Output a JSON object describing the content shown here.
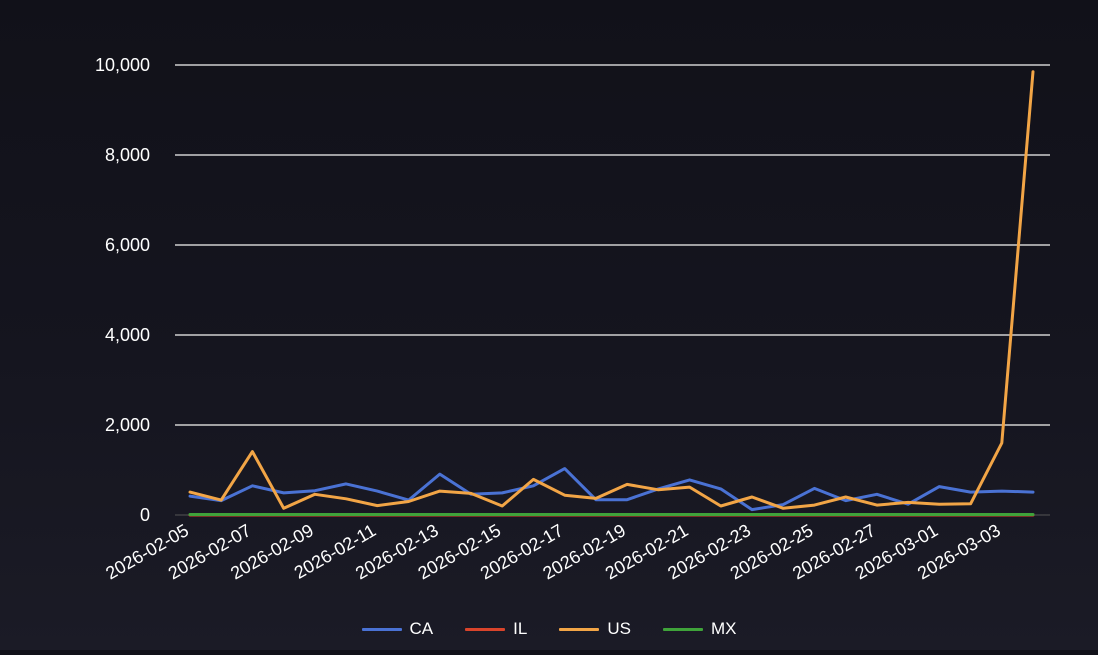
{
  "chart_data": {
    "type": "line",
    "x": [
      "2026-02-05",
      "2026-02-06",
      "2026-02-07",
      "2026-02-08",
      "2026-02-09",
      "2026-02-10",
      "2026-02-11",
      "2026-02-12",
      "2026-02-13",
      "2026-02-14",
      "2026-02-15",
      "2026-02-16",
      "2026-02-17",
      "2026-02-18",
      "2026-02-19",
      "2026-02-20",
      "2026-02-21",
      "2026-02-22",
      "2026-02-23",
      "2026-02-24",
      "2026-02-25",
      "2026-02-26",
      "2026-02-27",
      "2026-02-28",
      "2026-03-01",
      "2026-03-02",
      "2026-03-03",
      "2026-03-04"
    ],
    "x_tick_labels": [
      "2026-02-05",
      "2026-02-07",
      "2026-02-09",
      "2026-02-11",
      "2026-02-13",
      "2026-02-15",
      "2026-02-17",
      "2026-02-19",
      "2026-02-21",
      "2026-02-23",
      "2026-02-25",
      "2026-02-27",
      "2026-03-01",
      "2026-03-03"
    ],
    "y_tick_labels": [
      "0",
      "2,000",
      "4,000",
      "6,000",
      "8,000",
      "10,000"
    ],
    "ylim": [
      0,
      10000
    ],
    "grid": true,
    "legend_position": "bottom",
    "series": [
      {
        "name": "CA",
        "color": "#4a72d4",
        "values": [
          420,
          320,
          650,
          490,
          540,
          690,
          530,
          330,
          910,
          460,
          490,
          650,
          1030,
          340,
          340,
          580,
          780,
          580,
          120,
          230,
          590,
          320,
          460,
          240,
          630,
          510,
          530,
          510
        ]
      },
      {
        "name": "IL",
        "color": "#d9442b",
        "values": [
          0,
          0,
          0,
          0,
          0,
          0,
          0,
          0,
          0,
          0,
          0,
          0,
          0,
          0,
          0,
          0,
          0,
          0,
          0,
          0,
          0,
          0,
          0,
          0,
          0,
          0,
          0,
          0
        ]
      },
      {
        "name": "US",
        "color": "#f2a546",
        "values": [
          510,
          330,
          1410,
          150,
          460,
          360,
          210,
          300,
          530,
          480,
          200,
          790,
          440,
          370,
          680,
          560,
          620,
          200,
          400,
          150,
          220,
          400,
          220,
          280,
          240,
          250,
          1600,
          9850
        ]
      },
      {
        "name": "MX",
        "color": "#3fa33a",
        "values": [
          10,
          10,
          10,
          10,
          10,
          10,
          10,
          10,
          10,
          10,
          10,
          10,
          10,
          10,
          10,
          10,
          10,
          10,
          10,
          10,
          10,
          10,
          10,
          10,
          10,
          10,
          10,
          10
        ]
      }
    ]
  }
}
